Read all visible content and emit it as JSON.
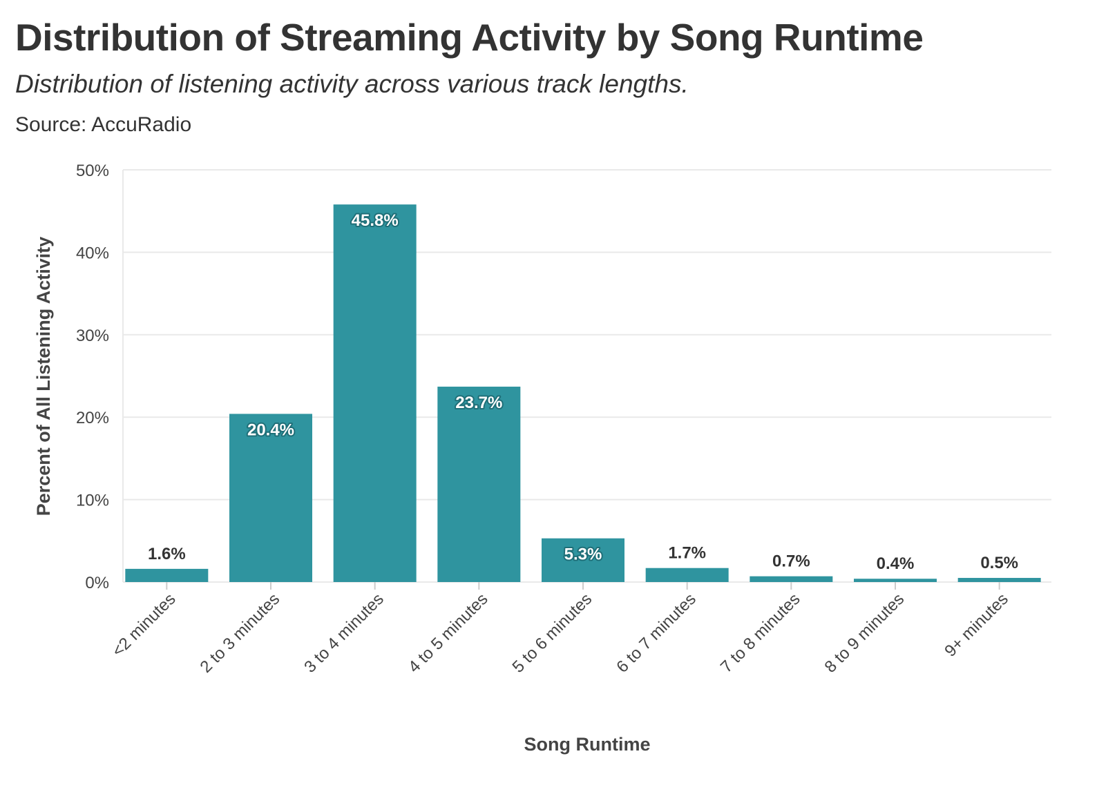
{
  "header": {
    "title": "Distribution of Streaming Activity by Song Runtime",
    "subtitle": "Distribution of listening activity across various track lengths.",
    "caption": "Source: AccuRadio"
  },
  "colors": {
    "bar": "#2f949f",
    "grid": "#e9e9e9",
    "text": "#333333",
    "label_inside": "#ffffff",
    "label_halo": "#1f6f78"
  },
  "chart_data": {
    "type": "bar",
    "title": "Distribution of Streaming Activity by Song Runtime",
    "subtitle": "Distribution of listening activity across various track lengths.",
    "caption": "Source: AccuRadio",
    "xlabel": "Song Runtime",
    "ylabel": "Percent of All Listening Activity",
    "categories": [
      "<2 minutes",
      "2 to 3 minutes",
      "3 to 4 minutes",
      "4 to 5 minutes",
      "5 to 6 minutes",
      "6 to 7 minutes",
      "7 to 8 minutes",
      "8 to 9 minutes",
      "9+ minutes"
    ],
    "values": [
      1.6,
      20.4,
      45.8,
      23.7,
      5.3,
      1.7,
      0.7,
      0.4,
      0.5
    ],
    "data_labels": [
      "1.6%",
      "20.4%",
      "45.8%",
      "23.7%",
      "5.3%",
      "1.7%",
      "0.7%",
      "0.4%",
      "0.5%"
    ],
    "ylim": [
      0,
      50
    ],
    "yticks": [
      0,
      10,
      20,
      30,
      40,
      50
    ],
    "ytick_labels": [
      "0%",
      "10%",
      "20%",
      "30%",
      "40%",
      "50%"
    ],
    "grid": true,
    "legend": "none"
  }
}
